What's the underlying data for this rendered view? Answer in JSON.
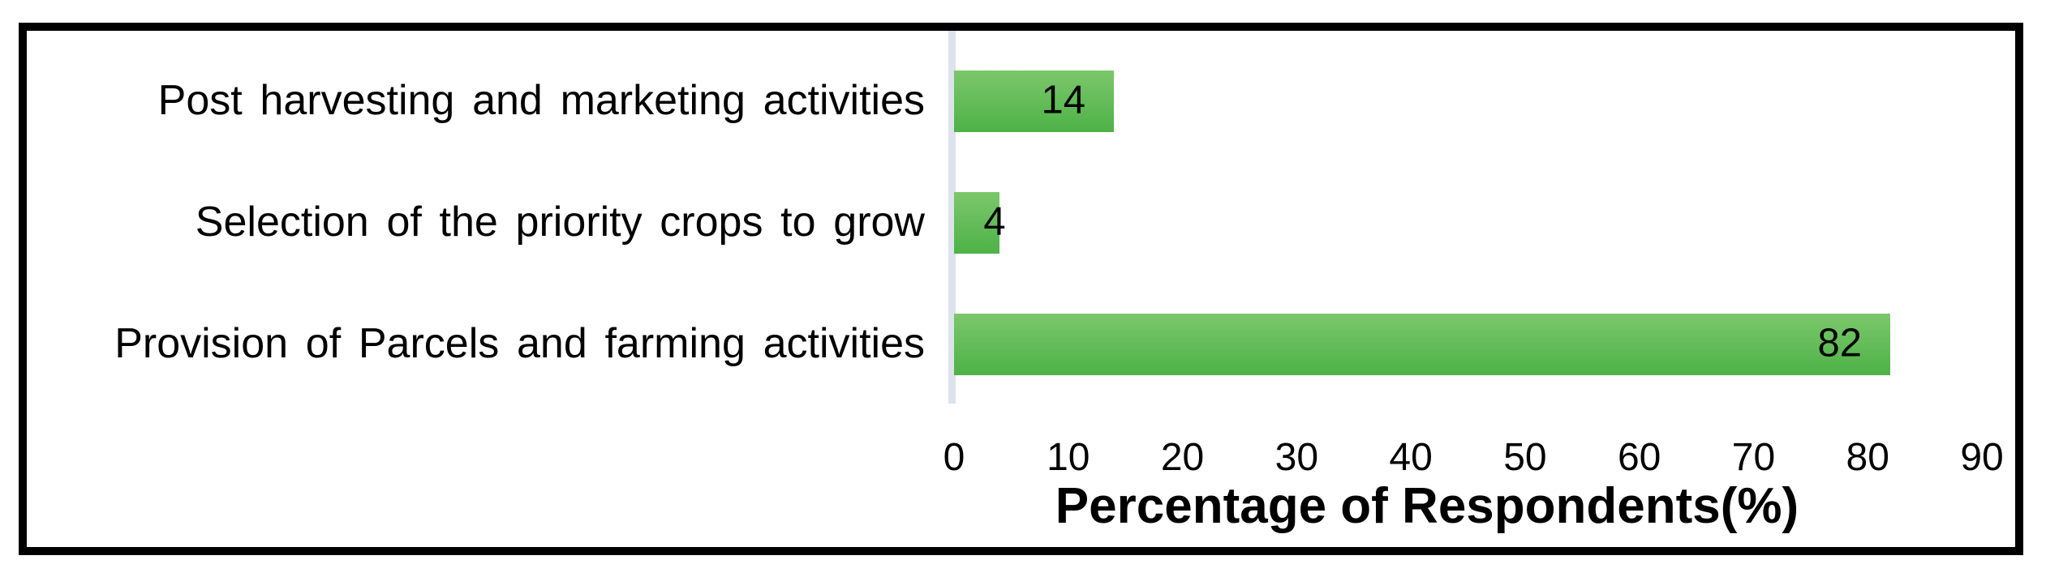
{
  "chart_data": {
    "type": "bar",
    "orientation": "horizontal",
    "title": "",
    "categories": [
      "Post harvesting and marketing activities",
      "Selection of the priority crops to grow",
      "Provision of Parcels and farming activities"
    ],
    "values": [
      14,
      4,
      82
    ],
    "value_labels": [
      "14",
      "4",
      "82"
    ],
    "xlabel": "Percentage of Respondents(%)",
    "ylabel": "",
    "xlim": [
      0,
      90
    ],
    "xticks": [
      "0",
      "10",
      "20",
      "30",
      "40",
      "50",
      "60",
      "70",
      "80",
      "90"
    ],
    "grid": false,
    "legend": "none",
    "colors": {
      "bar_gradient_top": "#7cc76b",
      "bar_gradient_bottom": "#4db247",
      "zero_baseline": "#dde3ec",
      "frame_border": "#000000",
      "text": "#000000",
      "background": "#ffffff"
    }
  }
}
